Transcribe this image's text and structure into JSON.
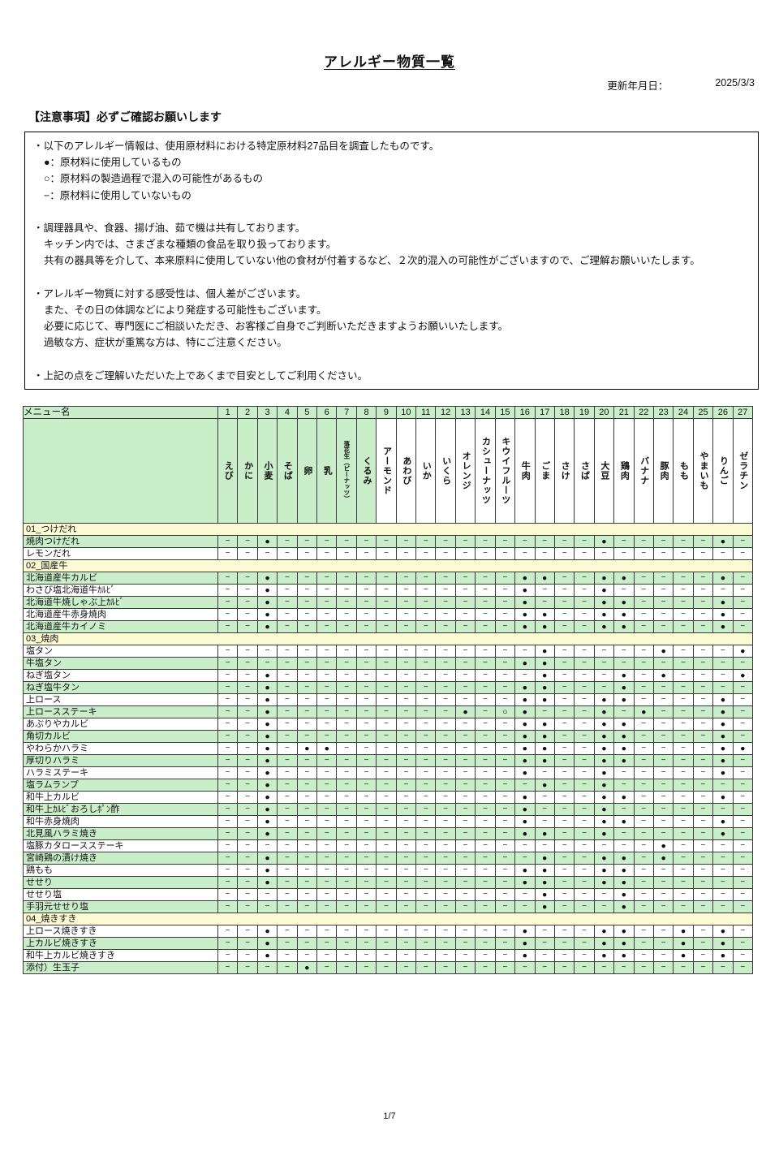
{
  "page": {
    "title": "アレルギー物質一覧",
    "updated_label": "更新年月日：",
    "updated_value": "2025/3/3",
    "notice_title": "【注意事項】必ずご確認お願いします",
    "page_number": "1/7"
  },
  "notice_lines": [
    {
      "indent": 0,
      "text": "・以下のアレルギー情報は、使用原材料における特定原材料27品目を調査したものです。"
    },
    {
      "indent": 1,
      "text": "●：原材料に使用しているもの"
    },
    {
      "indent": 1,
      "text": "○：原材料の製造過程で混入の可能性があるもの"
    },
    {
      "indent": 1,
      "text": "−：原材料に使用していないもの"
    },
    {
      "indent": 0,
      "text": ""
    },
    {
      "indent": 0,
      "text": "・調理器具や、食器、揚げ油、茹で機は共有しております。"
    },
    {
      "indent": 1,
      "text": "キッチン内では、さまざまな種類の食品を取り扱っております。"
    },
    {
      "indent": 1,
      "text": "共有の器具等を介して、本来原料に使用していない他の食材が付着するなど、２次的混入の可能性がございますので、ご理解お願いいたします。"
    },
    {
      "indent": 0,
      "text": ""
    },
    {
      "indent": 0,
      "text": "・アレルギー物質に対する感受性は、個人差がございます。"
    },
    {
      "indent": 1,
      "text": "また、その日の体調などにより発症する可能性もございます。"
    },
    {
      "indent": 1,
      "text": "必要に応じて、専門医にご相談いただき、お客様ご自身でご判断いただきますようお願いいたします。"
    },
    {
      "indent": 1,
      "text": "過敏な方、症状が重篤な方は、特にご注意ください。"
    },
    {
      "indent": 0,
      "text": ""
    },
    {
      "indent": 0,
      "text": "・上記の点をご理解いただいた上であくまで目安としてご利用ください。"
    }
  ],
  "symbols": {
    "used": "●",
    "may_contain": "○",
    "not_used": "−"
  },
  "colors": {
    "green": "#c9eec9",
    "yellow": "#fbfad2",
    "border": "#3a3a3a"
  },
  "table": {
    "menu_header": "メニュー名",
    "columns": [
      {
        "num": "1",
        "name": "えび",
        "green": true
      },
      {
        "num": "2",
        "name": "かに",
        "green": true
      },
      {
        "num": "3",
        "name": "小麦",
        "green": true
      },
      {
        "num": "4",
        "name": "そば",
        "green": true
      },
      {
        "num": "5",
        "name": "卵",
        "green": true
      },
      {
        "num": "6",
        "name": "乳",
        "green": true
      },
      {
        "num": "7",
        "name": "落花生（ピーナッツ）",
        "green": true,
        "small": true
      },
      {
        "num": "8",
        "name": "くるみ",
        "green": true
      },
      {
        "num": "9",
        "name": "アーモンド",
        "green": false
      },
      {
        "num": "10",
        "name": "あわび",
        "green": false
      },
      {
        "num": "11",
        "name": "いか",
        "green": false
      },
      {
        "num": "12",
        "name": "いくら",
        "green": false
      },
      {
        "num": "13",
        "name": "オレンジ",
        "green": false
      },
      {
        "num": "14",
        "name": "カシューナッツ",
        "green": false
      },
      {
        "num": "15",
        "name": "キウイフルーツ",
        "green": false
      },
      {
        "num": "16",
        "name": "牛肉",
        "green": false
      },
      {
        "num": "17",
        "name": "ごま",
        "green": false
      },
      {
        "num": "18",
        "name": "さけ",
        "green": false
      },
      {
        "num": "19",
        "name": "さば",
        "green": false
      },
      {
        "num": "20",
        "name": "大豆",
        "green": false
      },
      {
        "num": "21",
        "name": "鶏肉",
        "green": false
      },
      {
        "num": "22",
        "name": "バナナ",
        "green": false
      },
      {
        "num": "23",
        "name": "豚肉",
        "green": false
      },
      {
        "num": "24",
        "name": "もも",
        "green": false
      },
      {
        "num": "25",
        "name": "やまいも",
        "green": false
      },
      {
        "num": "26",
        "name": "りんご",
        "green": false
      },
      {
        "num": "27",
        "name": "ゼラチン",
        "green": false
      }
    ],
    "sections": [
      {
        "title": "01_つけだれ",
        "rows": [
          {
            "name": "焼肉つけだれ",
            "filled": [
              3,
              20,
              26
            ],
            "open": []
          },
          {
            "name": "レモンだれ",
            "filled": [],
            "open": []
          }
        ]
      },
      {
        "title": "02_国産牛",
        "rows": [
          {
            "name": "北海道産牛カルビ",
            "filled": [
              3,
              16,
              17,
              20,
              21,
              26
            ],
            "open": []
          },
          {
            "name": "わさび塩北海道牛ｶﾙﾋﾞ",
            "filled": [
              3,
              16,
              20
            ],
            "open": []
          },
          {
            "name": "北海道牛焼しゃぶ上ｶﾙﾋﾞ",
            "filled": [
              3,
              16,
              20,
              21,
              26
            ],
            "open": []
          },
          {
            "name": "北海道産牛赤身焼肉",
            "filled": [
              3,
              16,
              17,
              20,
              21,
              26
            ],
            "open": []
          },
          {
            "name": "北海道産牛カイノミ",
            "filled": [
              3,
              16,
              17,
              20,
              21,
              26
            ],
            "open": []
          }
        ]
      },
      {
        "title": "03_焼肉",
        "rows": [
          {
            "name": "塩タン",
            "filled": [
              17,
              23,
              27
            ],
            "open": []
          },
          {
            "name": "牛塩タン",
            "filled": [
              16,
              17
            ],
            "open": []
          },
          {
            "name": "ねぎ塩タン",
            "filled": [
              3,
              17,
              21,
              23,
              27
            ],
            "open": []
          },
          {
            "name": "ねぎ塩牛タン",
            "filled": [
              3,
              16,
              17,
              21
            ],
            "open": []
          },
          {
            "name": "上ロース",
            "filled": [
              3,
              16,
              17,
              20,
              21,
              26
            ],
            "open": []
          },
          {
            "name": "上ロースステーキ",
            "filled": [
              3,
              13,
              16,
              20,
              22,
              26
            ],
            "open": [
              15
            ]
          },
          {
            "name": "あぶりやカルビ",
            "filled": [
              3,
              16,
              17,
              20,
              21,
              26
            ],
            "open": []
          },
          {
            "name": "角切カルビ",
            "filled": [
              3,
              16,
              17,
              20,
              21,
              26
            ],
            "open": []
          },
          {
            "name": "やわらかハラミ",
            "filled": [
              3,
              5,
              6,
              16,
              17,
              20,
              21,
              26,
              27
            ],
            "open": []
          },
          {
            "name": "厚切りハラミ",
            "filled": [
              3,
              16,
              17,
              20,
              21,
              26
            ],
            "open": []
          },
          {
            "name": "ハラミステーキ",
            "filled": [
              3,
              16,
              20,
              26
            ],
            "open": []
          },
          {
            "name": "塩ラムランプ",
            "filled": [
              3,
              17,
              20
            ],
            "open": []
          },
          {
            "name": "和牛上カルビ",
            "filled": [
              3,
              16,
              20,
              21,
              26
            ],
            "open": []
          },
          {
            "name": "和牛上ｶﾙﾋﾞおろしﾎﾟﾝ酢",
            "filled": [
              3,
              16,
              20
            ],
            "open": []
          },
          {
            "name": "和牛赤身焼肉",
            "filled": [
              3,
              16,
              20,
              21,
              26
            ],
            "open": []
          },
          {
            "name": "北見風ハラミ焼き",
            "filled": [
              3,
              16,
              17,
              20,
              26
            ],
            "open": []
          },
          {
            "name": "塩豚カタロースステーキ",
            "filled": [
              23
            ],
            "open": []
          },
          {
            "name": "宮崎鶏の漬け焼き",
            "filled": [
              3,
              17,
              20,
              21,
              23
            ],
            "open": []
          },
          {
            "name": "鶏もも",
            "filled": [
              3,
              16,
              17,
              20,
              21
            ],
            "open": []
          },
          {
            "name": "せせり",
            "filled": [
              3,
              16,
              17,
              20,
              21
            ],
            "open": []
          },
          {
            "name": "せせり塩",
            "filled": [
              17,
              21
            ],
            "open": []
          },
          {
            "name": "手羽元せせり塩",
            "filled": [
              17,
              21
            ],
            "open": []
          }
        ]
      },
      {
        "title": "04_焼きすき",
        "rows": [
          {
            "name": "上ロース焼きすき",
            "filled": [
              3,
              16,
              20,
              21,
              24,
              26
            ],
            "open": []
          },
          {
            "name": "上カルビ焼きすき",
            "filled": [
              3,
              16,
              20,
              21,
              24,
              26
            ],
            "open": []
          },
          {
            "name": "和牛上カルビ焼きすき",
            "filled": [
              3,
              16,
              20,
              21,
              24,
              26
            ],
            "open": []
          },
          {
            "name": "添付）生玉子",
            "filled": [
              5
            ],
            "open": []
          }
        ]
      }
    ]
  }
}
